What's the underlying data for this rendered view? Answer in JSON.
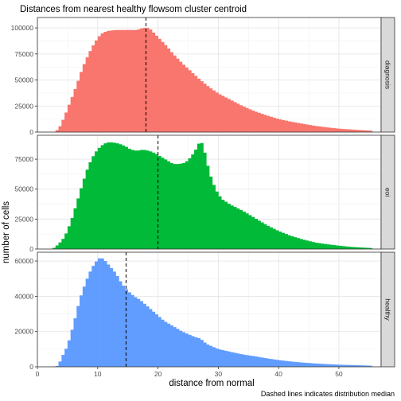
{
  "chart_data": {
    "type": "bar",
    "title": "Distances from nearest healthy flowsom cluster centroid",
    "xlabel": "distance from normal",
    "ylabel": "number of cells",
    "caption": "Dashed lines indicates distribution median",
    "xlim": [
      0,
      57
    ],
    "x_ticks": [
      0,
      10,
      20,
      30,
      40,
      50
    ],
    "x_tick_labels": [
      "0",
      "10",
      "20",
      "30",
      "40",
      "50"
    ],
    "colors": {
      "diagnosis": "#F8766D",
      "eoi": "#00BA38",
      "healthy": "#619CFF"
    },
    "panels": [
      {
        "name": "diagnosis",
        "color": "#F8766D",
        "median": 18.0,
        "ylim": [
          0,
          110000
        ],
        "y_ticks": [
          0,
          25000,
          50000,
          75000,
          100000
        ],
        "y_tick_labels": [
          "0",
          "25000",
          "50000",
          "75000",
          "100000"
        ],
        "range": [
          3.0,
          55.5
        ],
        "density_knots": [
          [
            3,
            0
          ],
          [
            3.8,
            6000
          ],
          [
            4.5,
            15000
          ],
          [
            5.5,
            30000
          ],
          [
            6.5,
            45000
          ],
          [
            7.5,
            62000
          ],
          [
            8.5,
            75000
          ],
          [
            9.5,
            86000
          ],
          [
            10.5,
            94000
          ],
          [
            11.5,
            97000
          ],
          [
            13,
            98000
          ],
          [
            15,
            98000
          ],
          [
            16.5,
            98000
          ],
          [
            17.5,
            100000
          ],
          [
            18.5,
            100000
          ],
          [
            19.5,
            94000
          ],
          [
            20.5,
            88000
          ],
          [
            21.5,
            82000
          ],
          [
            22.5,
            75000
          ],
          [
            24,
            66000
          ],
          [
            25.5,
            58000
          ],
          [
            27,
            50000
          ],
          [
            28.5,
            43000
          ],
          [
            30,
            37000
          ],
          [
            32,
            31000
          ],
          [
            34,
            25000
          ],
          [
            36,
            20000
          ],
          [
            38,
            16000
          ],
          [
            40,
            12500
          ],
          [
            42,
            10000
          ],
          [
            44,
            8000
          ],
          [
            46,
            6000
          ],
          [
            48,
            4500
          ],
          [
            50,
            3300
          ],
          [
            52,
            2500
          ],
          [
            54,
            1800
          ],
          [
            55.5,
            1300
          ]
        ]
      },
      {
        "name": "eoi",
        "color": "#00BA38",
        "median": 20.0,
        "ylim": [
          0,
          95000
        ],
        "y_ticks": [
          0,
          25000,
          50000,
          75000
        ],
        "y_tick_labels": [
          "0",
          "25000",
          "50000",
          "75000"
        ],
        "range": [
          2.5,
          55.5
        ],
        "density_knots": [
          [
            2.5,
            0
          ],
          [
            3.5,
            4000
          ],
          [
            4.5,
            10000
          ],
          [
            5.5,
            22000
          ],
          [
            6.5,
            38000
          ],
          [
            7.5,
            55000
          ],
          [
            8.5,
            70000
          ],
          [
            9.5,
            80000
          ],
          [
            10.5,
            86000
          ],
          [
            11.5,
            89000
          ],
          [
            12.5,
            89000
          ],
          [
            13.5,
            88000
          ],
          [
            14.5,
            86000
          ],
          [
            15.5,
            83000
          ],
          [
            16.5,
            82000
          ],
          [
            17.5,
            83000
          ],
          [
            18.5,
            82000
          ],
          [
            19.5,
            80000
          ],
          [
            20.5,
            77000
          ],
          [
            21.5,
            74000
          ],
          [
            22.5,
            71000
          ],
          [
            23.5,
            71000
          ],
          [
            24.5,
            72000
          ],
          [
            25.5,
            77000
          ],
          [
            26.5,
            85000
          ],
          [
            27,
            91000
          ],
          [
            27.5,
            86000
          ],
          [
            28,
            75000
          ],
          [
            28.5,
            64000
          ],
          [
            29.5,
            50000
          ],
          [
            30.5,
            42000
          ],
          [
            32,
            37000
          ],
          [
            34,
            32000
          ],
          [
            36,
            26000
          ],
          [
            38,
            20000
          ],
          [
            40,
            15000
          ],
          [
            42,
            11000
          ],
          [
            44,
            8000
          ],
          [
            46,
            5500
          ],
          [
            48,
            4000
          ],
          [
            50,
            2800
          ],
          [
            52,
            1800
          ],
          [
            54,
            1200
          ],
          [
            55.5,
            800
          ]
        ]
      },
      {
        "name": "healthy",
        "color": "#619CFF",
        "median": 14.7,
        "ylim": [
          0,
          65000
        ],
        "y_ticks": [
          0,
          20000,
          40000,
          60000
        ],
        "y_tick_labels": [
          "0",
          "20000",
          "40000",
          "60000"
        ],
        "range": [
          3.0,
          55.5
        ],
        "density_knots": [
          [
            3,
            0
          ],
          [
            3.5,
            1000
          ],
          [
            4,
            5000
          ],
          [
            5,
            12000
          ],
          [
            6,
            24000
          ],
          [
            7,
            38000
          ],
          [
            8,
            48000
          ],
          [
            9,
            56000
          ],
          [
            10,
            61000
          ],
          [
            10.5,
            62000
          ],
          [
            11,
            61000
          ],
          [
            12,
            57000
          ],
          [
            13,
            53000
          ],
          [
            14,
            47000
          ],
          [
            15,
            43000
          ],
          [
            16,
            40000
          ],
          [
            17,
            38000
          ],
          [
            18,
            35000
          ],
          [
            19,
            32000
          ],
          [
            20,
            29000
          ],
          [
            21,
            26000
          ],
          [
            22,
            24000
          ],
          [
            23,
            22000
          ],
          [
            24,
            20000
          ],
          [
            25,
            18500
          ],
          [
            26,
            17000
          ],
          [
            27,
            16000
          ],
          [
            28,
            13000
          ],
          [
            30,
            10000
          ],
          [
            32,
            8500
          ],
          [
            34,
            7000
          ],
          [
            36,
            6000
          ],
          [
            38,
            4800
          ],
          [
            40,
            3800
          ],
          [
            42,
            3000
          ],
          [
            44,
            2400
          ],
          [
            46,
            1900
          ],
          [
            48,
            1500
          ],
          [
            50,
            1200
          ],
          [
            52,
            1000
          ],
          [
            54,
            800
          ],
          [
            55.5,
            600
          ]
        ]
      }
    ]
  }
}
